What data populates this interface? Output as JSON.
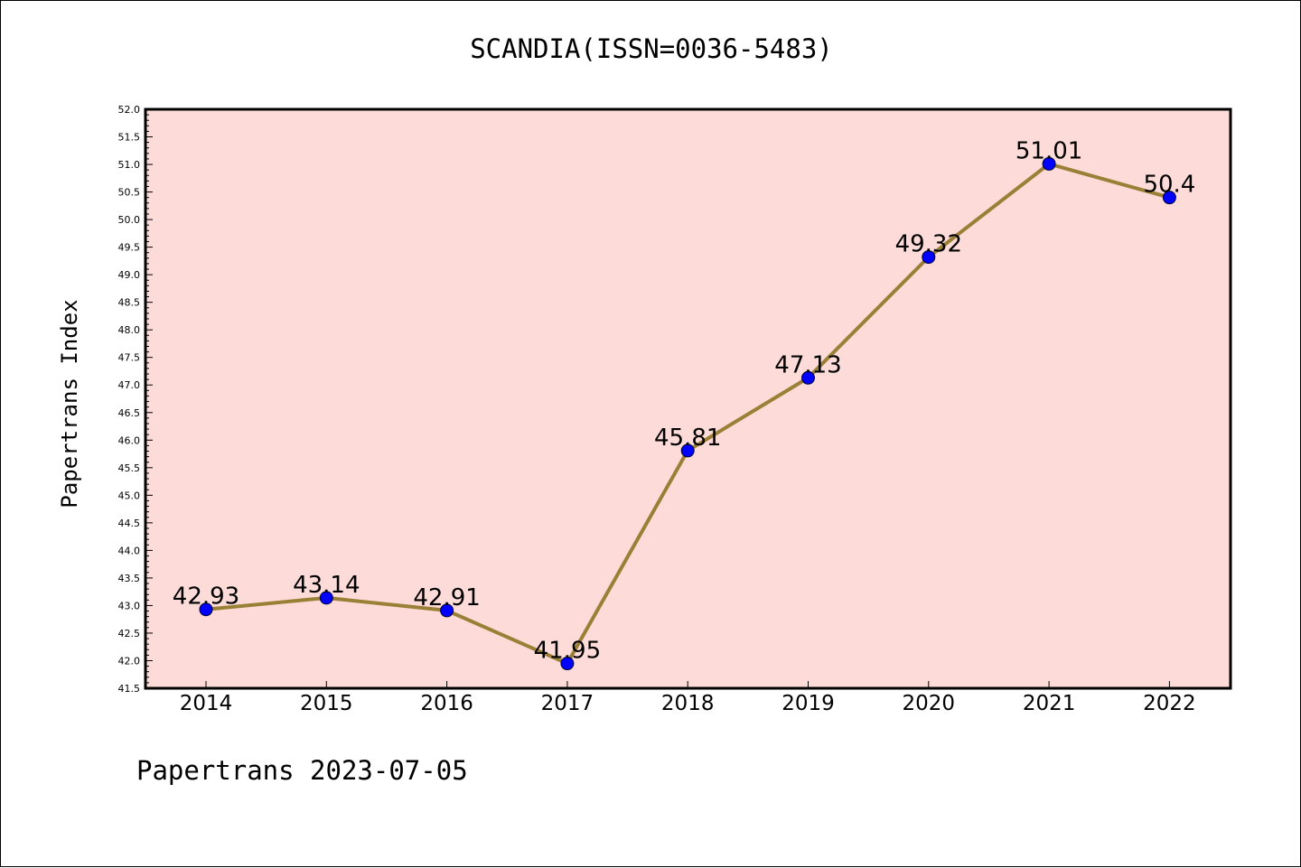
{
  "chart_data": {
    "type": "line",
    "title": "SCANDIA(ISSN=0036-5483)",
    "xlabel": "",
    "ylabel": "Papertrans Index",
    "categories": [
      "2014",
      "2015",
      "2016",
      "2017",
      "2018",
      "2019",
      "2020",
      "2021",
      "2022"
    ],
    "series": [
      {
        "values": [
          42.93,
          43.14,
          42.91,
          41.95,
          45.81,
          47.13,
          49.32,
          51.01,
          50.4
        ],
        "labels": [
          "42.93",
          "43.14",
          "42.91",
          "41.95",
          "45.81",
          "47.13",
          "49.32",
          "51.01",
          "50.4"
        ]
      }
    ],
    "ylim": [
      41.5,
      52.0
    ],
    "yticks": [
      "41.5",
      "42.0",
      "42.5",
      "43.0",
      "43.5",
      "44.0",
      "44.5",
      "45.0",
      "45.5",
      "46.0",
      "46.5",
      "47.0",
      "47.5",
      "48.0",
      "48.5",
      "49.0",
      "49.5",
      "50.0",
      "50.5",
      "51.0",
      "51.5",
      "52.0"
    ],
    "grid": false,
    "colors": {
      "plot_background": "#fddbd8",
      "line": "#9a8037",
      "marker": "#0000ff"
    }
  },
  "footer": "Papertrans 2023-07-05"
}
